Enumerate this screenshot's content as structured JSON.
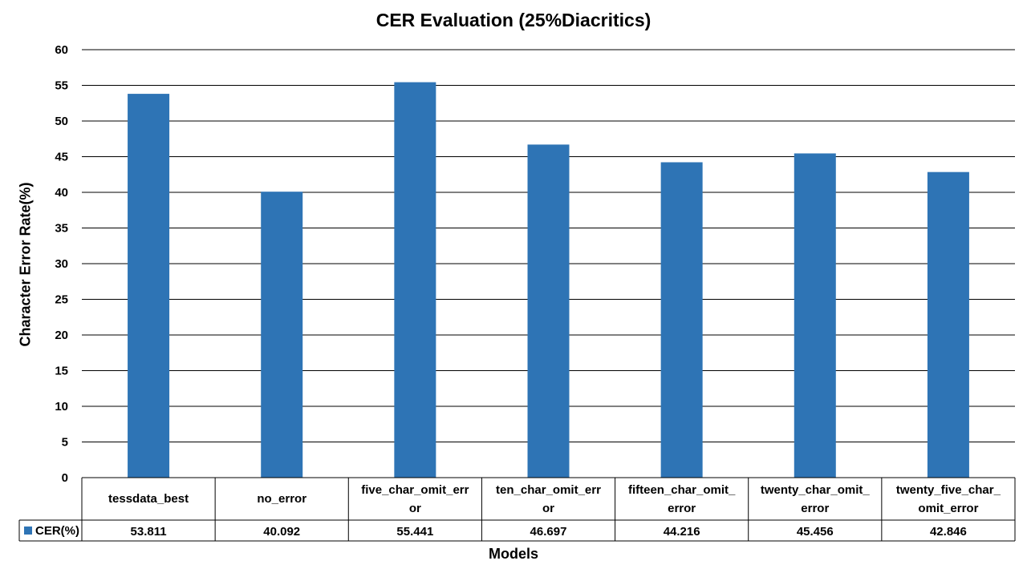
{
  "chart_data": {
    "type": "bar",
    "title": "CER Evaluation (25%Diacritics)",
    "xlabel": "Models",
    "ylabel": "Character Error Rate(%)",
    "ylim": [
      0,
      60
    ],
    "yticks": [
      0,
      5,
      10,
      15,
      20,
      25,
      30,
      35,
      40,
      45,
      50,
      55,
      60
    ],
    "grid": true,
    "legend_placement": "data-table",
    "categories": [
      "tessdata_best",
      "no_error",
      "five_char_omit_error",
      "ten_char_omit_error",
      "fifteen_char_omit_error",
      "twenty_char_omit_error",
      "twenty_five_char_omit_error"
    ],
    "category_label_lines": [
      [
        "tessdata_best"
      ],
      [
        "no_error"
      ],
      [
        "five_char_omit_err",
        "or"
      ],
      [
        "ten_char_omit_err",
        "or"
      ],
      [
        "fifteen_char_omit_",
        "error"
      ],
      [
        "twenty_char_omit_",
        "error"
      ],
      [
        "twenty_five_char_",
        "omit_error"
      ]
    ],
    "series": [
      {
        "name": "CER(%)",
        "color": "#2E74B5",
        "values": [
          53.811,
          40.092,
          55.441,
          46.697,
          44.216,
          45.456,
          42.846
        ],
        "value_labels": [
          "53.811",
          "40.092",
          "55.441",
          "46.697",
          "44.216",
          "45.456",
          "42.846"
        ]
      }
    ]
  }
}
